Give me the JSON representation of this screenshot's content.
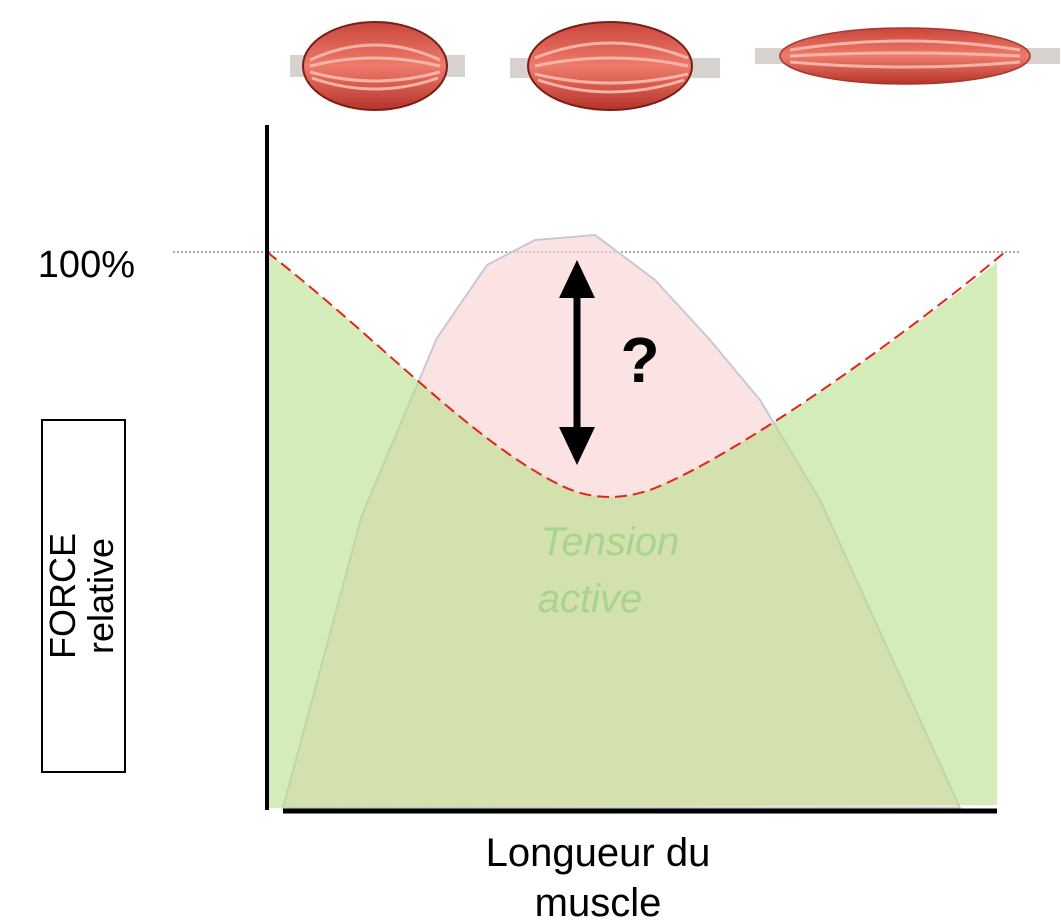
{
  "y_axis": {
    "tick": "100%",
    "label": [
      "FORCE",
      "relative"
    ]
  },
  "annotation": "?",
  "region_label": [
    "Tension",
    "active"
  ],
  "x_axis": {
    "label": [
      "Longueur du",
      "muscle"
    ]
  }
}
